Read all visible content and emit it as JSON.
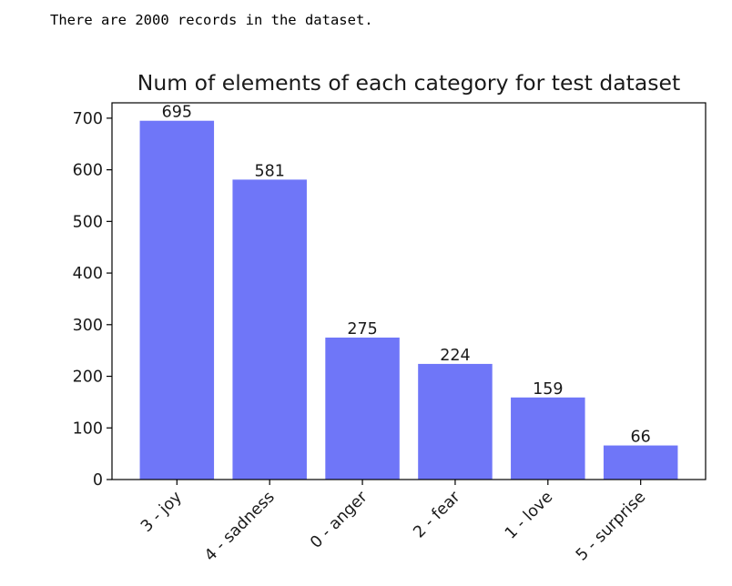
{
  "output": {
    "text": "There are 2000 records in the dataset."
  },
  "chart_data": {
    "type": "bar",
    "title": "Num of elements of each category for test dataset",
    "xlabel": "",
    "ylabel": "",
    "categories": [
      "3 - joy",
      "4 - sadness",
      "0 - anger",
      "2 - fear",
      "1 - love",
      "5 - surprise"
    ],
    "values": [
      695,
      581,
      275,
      224,
      159,
      66
    ],
    "data_labels": [
      "695",
      "581",
      "275",
      "224",
      "159",
      "66"
    ],
    "yticks": [
      0,
      100,
      200,
      300,
      400,
      500,
      600,
      700
    ],
    "ytick_labels": [
      "0",
      "100",
      "200",
      "300",
      "400",
      "500",
      "600",
      "700"
    ],
    "ylim": [
      0,
      729.75
    ],
    "grid": false,
    "bar_color": "#6f76f8"
  }
}
